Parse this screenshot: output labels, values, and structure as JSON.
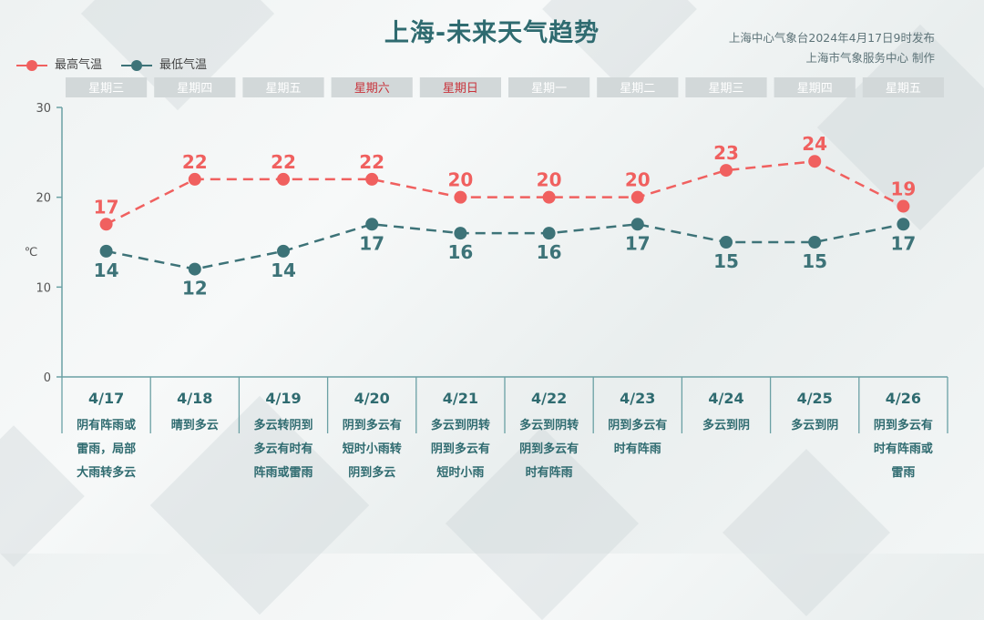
{
  "header": {
    "title": "上海-未来天气趋势",
    "source_line1": "上海中心气象台2024年4月17日9时发布",
    "source_line2": "上海市气象服务中心 制作"
  },
  "colors": {
    "high": "#f0605f",
    "low": "#3d7378",
    "weekend": "#c8323a",
    "axis": "#6aa0a4",
    "date_text": "#2f6b70"
  },
  "chart_data": {
    "type": "line",
    "ylim": [
      0,
      30
    ],
    "yticks": [
      "0",
      "10",
      "20",
      "30"
    ],
    "ylabel": "℃",
    "legend_placement": "top-left",
    "days": [
      {
        "weekday": "星期三",
        "date": "4/17",
        "weather": [
          "阴有阵雨或",
          "雷雨，局部",
          "大雨转多云"
        ],
        "weekend": false
      },
      {
        "weekday": "星期四",
        "date": "4/18",
        "weather": [
          "晴到多云"
        ],
        "weekend": false
      },
      {
        "weekday": "星期五",
        "date": "4/19",
        "weather": [
          "多云转阴到",
          "多云有时有",
          "阵雨或雷雨"
        ],
        "weekend": false
      },
      {
        "weekday": "星期六",
        "date": "4/20",
        "weather": [
          "阴到多云有",
          "短时小雨转",
          "阴到多云"
        ],
        "weekend": true
      },
      {
        "weekday": "星期日",
        "date": "4/21",
        "weather": [
          "多云到阴转",
          "阴到多云有",
          "短时小雨"
        ],
        "weekend": true
      },
      {
        "weekday": "星期一",
        "date": "4/22",
        "weather": [
          "多云到阴转",
          "阴到多云有",
          "时有阵雨"
        ],
        "weekend": false
      },
      {
        "weekday": "星期二",
        "date": "4/23",
        "weather": [
          "阴到多云有",
          "时有阵雨"
        ],
        "weekend": false
      },
      {
        "weekday": "星期三",
        "date": "4/24",
        "weather": [
          "多云到阴"
        ],
        "weekend": false
      },
      {
        "weekday": "星期四",
        "date": "4/25",
        "weather": [
          "多云到阴"
        ],
        "weekend": false
      },
      {
        "weekday": "星期五",
        "date": "4/26",
        "weather": [
          "阴到多云有",
          "时有阵雨或",
          "雷雨"
        ],
        "weekend": false
      }
    ],
    "series": [
      {
        "name": "最高气温",
        "key": "high",
        "values": [
          17,
          22,
          22,
          22,
          20,
          20,
          20,
          23,
          24,
          19
        ]
      },
      {
        "name": "最低气温",
        "key": "low",
        "values": [
          14,
          12,
          14,
          17,
          16,
          16,
          17,
          15,
          15,
          17
        ]
      }
    ]
  }
}
